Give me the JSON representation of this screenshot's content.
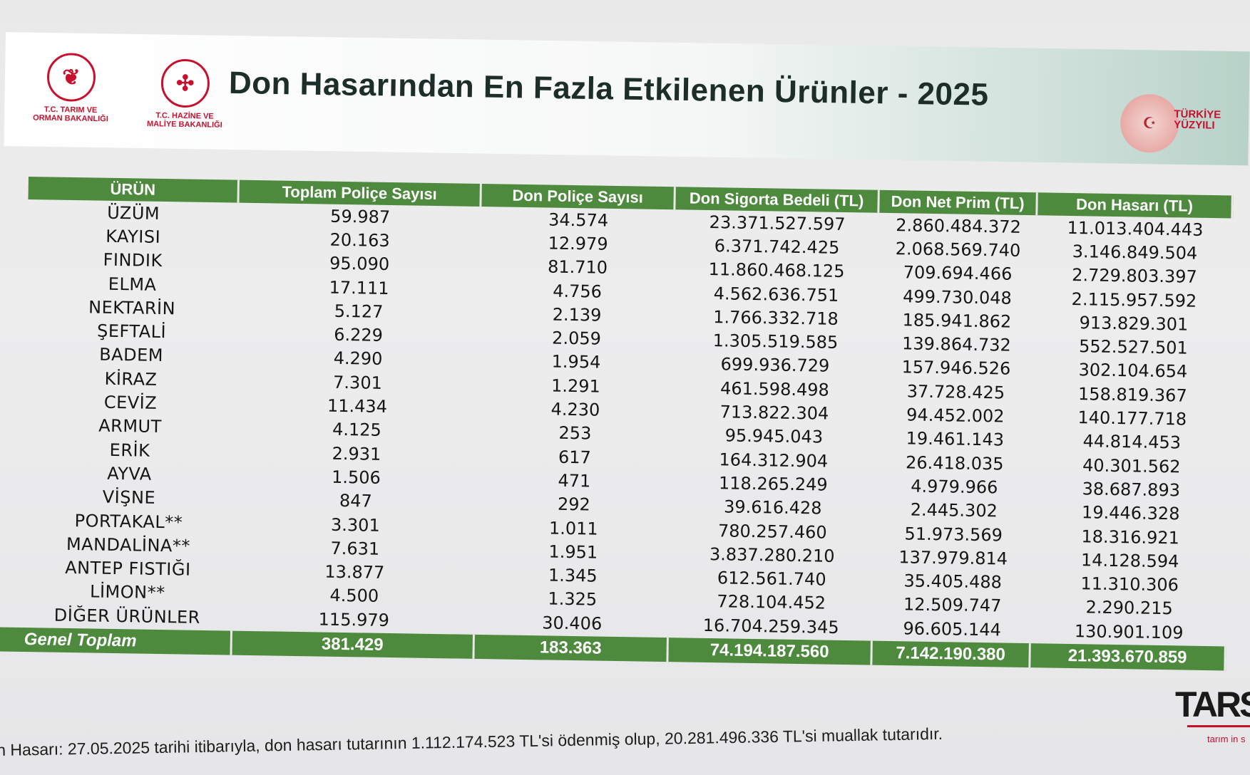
{
  "header": {
    "title": "Don Hasarından En Fazla Etkilenen Ürünler - 2025",
    "logo1_caption": "T.C. TARIM VE\nORMAN BAKANLIĞI",
    "logo2_caption": "T.C. HAZİNE VE\nMALİYE BAKANLIĞI",
    "badge_caption": "TÜRKİYE\nYÜZYILI"
  },
  "table": {
    "headers": [
      "ÜRÜN",
      "Toplam Poliçe Sayısı",
      "Don Poliçe Sayısı",
      "Don Sigorta Bedeli (TL)",
      "Don Net Prim (TL)",
      "Don Hasarı (TL)"
    ],
    "rows": [
      [
        "ÜZÜM",
        "59.987",
        "34.574",
        "23.371.527.597",
        "2.860.484.372",
        "11.013.404.443"
      ],
      [
        "KAYISI",
        "20.163",
        "12.979",
        "6.371.742.425",
        "2.068.569.740",
        "3.146.849.504"
      ],
      [
        "FINDIK",
        "95.090",
        "81.710",
        "11.860.468.125",
        "709.694.466",
        "2.729.803.397"
      ],
      [
        "ELMA",
        "17.111",
        "4.756",
        "4.562.636.751",
        "499.730.048",
        "2.115.957.592"
      ],
      [
        "NEKTARİN",
        "5.127",
        "2.139",
        "1.766.332.718",
        "185.941.862",
        "913.829.301"
      ],
      [
        "ŞEFTALİ",
        "6.229",
        "2.059",
        "1.305.519.585",
        "139.864.732",
        "552.527.501"
      ],
      [
        "BADEM",
        "4.290",
        "1.954",
        "699.936.729",
        "157.946.526",
        "302.104.654"
      ],
      [
        "KİRAZ",
        "7.301",
        "1.291",
        "461.598.498",
        "37.728.425",
        "158.819.367"
      ],
      [
        "CEVİZ",
        "11.434",
        "4.230",
        "713.822.304",
        "94.452.002",
        "140.177.718"
      ],
      [
        "ARMUT",
        "4.125",
        "253",
        "95.945.043",
        "19.461.143",
        "44.814.453"
      ],
      [
        "ERİK",
        "2.931",
        "617",
        "164.312.904",
        "26.418.035",
        "40.301.562"
      ],
      [
        "AYVA",
        "1.506",
        "471",
        "118.265.249",
        "4.979.966",
        "38.687.893"
      ],
      [
        "VİŞNE",
        "847",
        "292",
        "39.616.428",
        "2.445.302",
        "19.446.328"
      ],
      [
        "PORTAKAL**",
        "3.301",
        "1.011",
        "780.257.460",
        "51.973.569",
        "18.316.921"
      ],
      [
        "MANDALİNA**",
        "7.631",
        "1.951",
        "3.837.280.210",
        "137.979.814",
        "14.128.594"
      ],
      [
        "ANTEP FISTIĞI",
        "13.877",
        "1.345",
        "612.561.740",
        "35.405.488",
        "11.310.306"
      ],
      [
        "LİMON**",
        "4.500",
        "1.325",
        "728.104.452",
        "12.509.747",
        "2.290.215"
      ],
      [
        "DİĞER ÜRÜNLER",
        "115.979",
        "30.406",
        "16.704.259.345",
        "96.605.144",
        "130.901.109"
      ]
    ],
    "total": [
      "Genel Toplam",
      "381.429",
      "183.363",
      "74.194.187.560",
      "7.142.190.380",
      "21.393.670.859"
    ]
  },
  "brand": {
    "name": "TARS",
    "sub": "tarım in s"
  },
  "footer": "n Hasarı: 27.05.2025 tarihi itibarıyla, don hasarı tutarının 1.112.174.523 TL'si ödenmiş olup, 20.281.496.336 TL'si muallak tutarıdır.",
  "colors": {
    "table_green": "#4d8a3d",
    "brand_red": "#c8102e"
  }
}
